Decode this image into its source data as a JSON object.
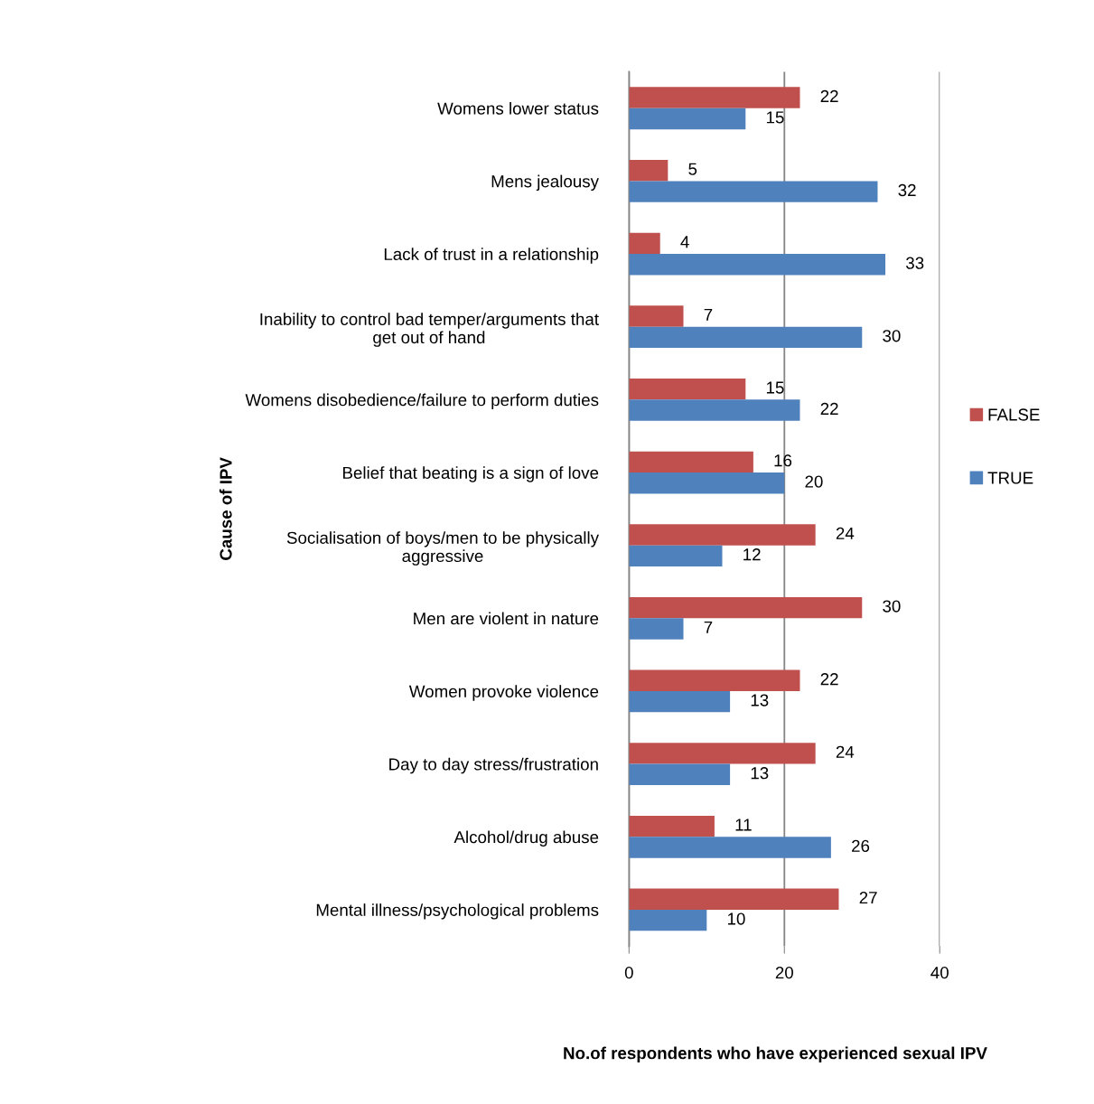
{
  "chart_data": {
    "type": "bar",
    "orientation": "horizontal",
    "xlabel": "No.of respondents who have experienced sexual IPV",
    "ylabel": "Cause of IPV",
    "categories": [
      "Womens lower status",
      "Mens jealousy",
      "Lack of trust in a relationship",
      "Inability to control bad temper/arguments that\nget out of hand",
      "Womens disobedience/failure to perform duties",
      "Belief that beating is a sign of love",
      "Socialisation of boys/men to be physically\naggressive",
      "Men are violent in nature",
      "Women provoke violence",
      "Day to day stress/frustration",
      "Alcohol/drug abuse",
      "Mental illness/psychological problems"
    ],
    "series": [
      {
        "name": "FALSE",
        "color": "#c0504d",
        "values": [
          22,
          5,
          4,
          7,
          15,
          16,
          24,
          30,
          22,
          24,
          11,
          27
        ]
      },
      {
        "name": "TRUE",
        "color": "#4f81bd",
        "values": [
          15,
          32,
          33,
          30,
          22,
          20,
          12,
          7,
          13,
          13,
          26,
          10
        ]
      }
    ],
    "xlim": [
      0,
      40
    ],
    "xticks": [
      0,
      20,
      40
    ],
    "grid": "x",
    "legend": "right",
    "data_labels": true
  }
}
